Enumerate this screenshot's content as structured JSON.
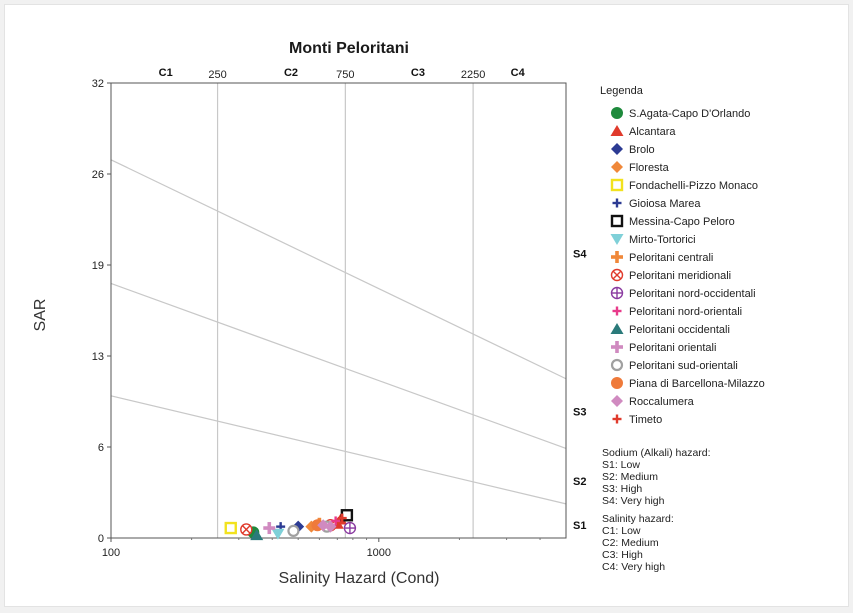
{
  "chart_data": {
    "type": "scatter",
    "title": "Monti Peloritani",
    "xlabel": "Salinity Hazard (Cond)",
    "ylabel": "SAR",
    "x_scale": "log",
    "xlim": [
      100,
      5000
    ],
    "ylim": [
      0,
      32
    ],
    "grid": true,
    "legend_position": "right",
    "x_tick_labels": [
      "100",
      "1000"
    ],
    "y_tick_labels": [
      "0",
      "6",
      "13",
      "19",
      "26",
      "32"
    ],
    "y_ticks": [
      0,
      6.4,
      12.8,
      19.2,
      25.6,
      32
    ],
    "top_axis": {
      "class_labels": [
        "C1",
        "C2",
        "C3",
        "C4"
      ],
      "class_positions": [
        160,
        470,
        1400,
        3300
      ],
      "boundaries": [
        250,
        750,
        2250
      ],
      "boundary_labels": [
        "250",
        "750",
        "2250"
      ]
    },
    "right_axis": {
      "class_labels": [
        "S1",
        "S2",
        "S3",
        "S4"
      ],
      "class_positions": [
        0.9,
        4.0,
        8.9,
        20.0
      ]
    },
    "divider_lines": [
      {
        "x": [
          100,
          5000
        ],
        "y": [
          26.6,
          11.2
        ]
      },
      {
        "x": [
          100,
          5000
        ],
        "y": [
          17.9,
          6.3
        ]
      },
      {
        "x": [
          100,
          5000
        ],
        "y": [
          10.0,
          2.4
        ]
      }
    ],
    "legend_title": "Legenda",
    "series": [
      {
        "name": "S.Agata-Capo D'Orlando",
        "marker": "circle",
        "color": "#1e8a3c",
        "points": [
          [
            340,
            0.4
          ]
        ]
      },
      {
        "name": "Alcantara",
        "marker": "triangle",
        "color": "#e03a2c",
        "points": [
          [
            720,
            1.3
          ],
          [
            700,
            1.0
          ]
        ]
      },
      {
        "name": "Brolo",
        "marker": "diamond",
        "color": "#2c3b93",
        "points": [
          [
            500,
            0.8
          ]
        ]
      },
      {
        "name": "Floresta",
        "marker": "diamond",
        "color": "#f0883a",
        "points": [
          [
            560,
            0.8
          ]
        ]
      },
      {
        "name": "Fondachelli-Pizzo Monaco",
        "marker": "square-open",
        "color": "#f2e21e",
        "points": [
          [
            280,
            0.7
          ]
        ]
      },
      {
        "name": "Gioiosa Marea",
        "marker": "plus-thin",
        "color": "#2c3b93",
        "points": [
          [
            430,
            0.8
          ]
        ]
      },
      {
        "name": "Messina-Capo Peloro",
        "marker": "square-open",
        "color": "#111111",
        "points": [
          [
            760,
            1.6
          ]
        ]
      },
      {
        "name": "Mirto-Tortorici",
        "marker": "triangle-down",
        "color": "#7fd0d8",
        "points": [
          [
            420,
            0.3
          ]
        ]
      },
      {
        "name": "Peloritani centrali",
        "marker": "plus",
        "color": "#f0883a",
        "points": [
          [
            600,
            1.0
          ]
        ]
      },
      {
        "name": "Peloritani meridionali",
        "marker": "circle-x",
        "color": "#e03a2c",
        "points": [
          [
            320,
            0.6
          ],
          [
            660,
            0.9
          ]
        ]
      },
      {
        "name": "Peloritani nord-occidentali",
        "marker": "circle-plus",
        "color": "#8a3aa0",
        "points": [
          [
            780,
            0.7
          ]
        ]
      },
      {
        "name": "Peloritani nord-orientali",
        "marker": "plus-thin",
        "color": "#e83a8a",
        "points": [
          [
            690,
            1.2
          ]
        ]
      },
      {
        "name": "Peloritani occidentali",
        "marker": "triangle",
        "color": "#2a7a7a",
        "points": [
          [
            350,
            0.2
          ]
        ]
      },
      {
        "name": "Peloritani orientali",
        "marker": "plus",
        "color": "#d08ac0",
        "points": [
          [
            390,
            0.7
          ]
        ]
      },
      {
        "name": "Peloritani sud-orientali",
        "marker": "circle-ring",
        "color": "#a0a0a0",
        "points": [
          [
            480,
            0.5
          ],
          [
            640,
            0.8
          ]
        ]
      },
      {
        "name": "Piana di Barcellona-Milazzo",
        "marker": "circle",
        "color": "#ef7a3a",
        "points": [
          [
            590,
            0.9
          ]
        ]
      },
      {
        "name": "Roccalumera",
        "marker": "diamond",
        "color": "#d08ac0",
        "points": [
          [
            660,
            0.8
          ],
          [
            620,
            0.9
          ]
        ]
      },
      {
        "name": "Timeto",
        "marker": "plus-thin",
        "color": "#e03a2c",
        "points": [
          [
            730,
            1.4
          ]
        ]
      }
    ],
    "notes": [
      {
        "title": "Sodium (Alkali) hazard:",
        "items": [
          "S1: Low",
          "S2: Medium",
          "S3: High",
          "S4: Very high"
        ]
      },
      {
        "title": "Salinity hazard:",
        "items": [
          "C1: Low",
          "C2: Medium",
          "C3: High",
          "C4: Very high"
        ]
      }
    ]
  }
}
